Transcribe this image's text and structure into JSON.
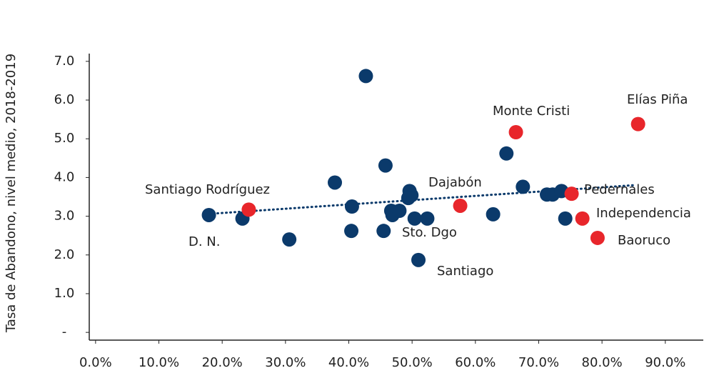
{
  "chart_data": {
    "type": "scatter",
    "y_label": "Tasa de Abandono, nivel medio, 2018-2019",
    "xlim": [
      -1,
      96
    ],
    "ylim": [
      -0.2,
      7.2
    ],
    "xticks": [
      {
        "value": 0,
        "label": "0.0%"
      },
      {
        "value": 10,
        "label": "10.0%"
      },
      {
        "value": 20,
        "label": "20.0%"
      },
      {
        "value": 30,
        "label": "30.0%"
      },
      {
        "value": 40,
        "label": "40.0%"
      },
      {
        "value": 50,
        "label": "50.0%"
      },
      {
        "value": 60,
        "label": "60.0%"
      },
      {
        "value": 70,
        "label": "70.0%"
      },
      {
        "value": 80,
        "label": "80.0%"
      },
      {
        "value": 90,
        "label": "90.0%"
      }
    ],
    "yticks": [
      {
        "value": 0,
        "label": "-"
      },
      {
        "value": 1,
        "label": "1.0"
      },
      {
        "value": 2,
        "label": "2.0"
      },
      {
        "value": 3,
        "label": "3.0"
      },
      {
        "value": 4,
        "label": "4.0"
      },
      {
        "value": 5,
        "label": "5.0"
      },
      {
        "value": 6,
        "label": "6.0"
      },
      {
        "value": 7,
        "label": "7.0"
      }
    ],
    "series": [
      {
        "color": "#0b3a6b",
        "x": [
          17.9,
          23.2,
          30.6,
          37.8,
          40.5,
          40.4,
          42.7,
          45.8,
          45.5,
          46.7,
          46.9,
          48.0,
          49.6,
          49.9,
          49.4,
          50.4,
          52.4,
          51.0,
          62.8,
          64.9,
          67.5,
          71.3,
          72.2,
          73.6,
          74.2
        ],
        "values": [
          3.03,
          2.94,
          2.4,
          3.87,
          3.25,
          2.62,
          6.62,
          4.31,
          2.62,
          3.14,
          3.03,
          3.14,
          3.65,
          3.54,
          3.47,
          2.94,
          2.94,
          1.87,
          3.05,
          4.62,
          3.76,
          3.56,
          3.56,
          3.65,
          2.94
        ]
      },
      {
        "color": "#e8262b",
        "x": [
          24.2,
          57.6,
          66.4,
          75.2,
          76.9,
          79.3,
          85.7
        ],
        "values": [
          3.17,
          3.27,
          5.17,
          3.58,
          2.94,
          2.44,
          5.38
        ]
      }
    ],
    "trendline": {
      "color": "#0b3a6b",
      "x": [
        17.9,
        84.9
      ],
      "values": [
        3.06,
        3.8
      ]
    },
    "annotations": [
      "Elías Piña",
      "Monte Cristi",
      "Dajabón",
      "Santiago Rodríguez",
      "Pedernales",
      "Independencia",
      "Baoruco",
      "D. N.",
      "Sto. Dgo",
      "Santiago"
    ]
  }
}
